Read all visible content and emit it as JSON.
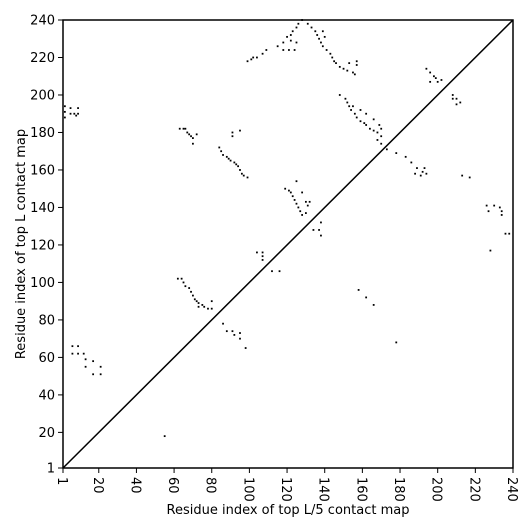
{
  "chart_data": {
    "type": "scatter",
    "xlabel": "Residue index of top L/5 contact map",
    "ylabel": "Residue index of top L contact map",
    "xlim": [
      1,
      240
    ],
    "ylim": [
      1,
      240
    ],
    "xticks": [
      1,
      20,
      40,
      60,
      80,
      100,
      120,
      140,
      160,
      180,
      200,
      220,
      240
    ],
    "yticks": [
      1,
      20,
      40,
      60,
      80,
      100,
      120,
      140,
      160,
      180,
      200,
      220,
      240
    ],
    "xtick_labels": [
      "1",
      "20",
      "40",
      "60",
      "80",
      "100",
      "120",
      "140",
      "160",
      "180",
      "200",
      "220",
      "240"
    ],
    "ytick_labels": [
      "1",
      "20",
      "40",
      "60",
      "80",
      "100",
      "120",
      "140",
      "160",
      "180",
      "200",
      "220",
      "240"
    ],
    "diagonal": true,
    "grid": false,
    "marker_color": "#000000",
    "points": [
      [
        2,
        194
      ],
      [
        2,
        191
      ],
      [
        2,
        188
      ],
      [
        5,
        193
      ],
      [
        5,
        190
      ],
      [
        7,
        190
      ],
      [
        8,
        189
      ],
      [
        9,
        193
      ],
      [
        9,
        190
      ],
      [
        6,
        66
      ],
      [
        6,
        62
      ],
      [
        9,
        66
      ],
      [
        9,
        62
      ],
      [
        12,
        62
      ],
      [
        13,
        59
      ],
      [
        13,
        55
      ],
      [
        17,
        58
      ],
      [
        17,
        51
      ],
      [
        21,
        55
      ],
      [
        21,
        51
      ],
      [
        63,
        182
      ],
      [
        65,
        182
      ],
      [
        66,
        182
      ],
      [
        67,
        180
      ],
      [
        68,
        179
      ],
      [
        69,
        178
      ],
      [
        70,
        177
      ],
      [
        70,
        174
      ],
      [
        72,
        179
      ],
      [
        62,
        102
      ],
      [
        64,
        102
      ],
      [
        65,
        100
      ],
      [
        66,
        98
      ],
      [
        68,
        97
      ],
      [
        69,
        95
      ],
      [
        70,
        93
      ],
      [
        71,
        91
      ],
      [
        72,
        90
      ],
      [
        73,
        89
      ],
      [
        73,
        87
      ],
      [
        75,
        88
      ],
      [
        76,
        87
      ],
      [
        78,
        86
      ],
      [
        80,
        90
      ],
      [
        80,
        86
      ],
      [
        84,
        172
      ],
      [
        85,
        170
      ],
      [
        86,
        168
      ],
      [
        88,
        167
      ],
      [
        89,
        166
      ],
      [
        90,
        165
      ],
      [
        92,
        164
      ],
      [
        93,
        163
      ],
      [
        94,
        162
      ],
      [
        95,
        160
      ],
      [
        96,
        158
      ],
      [
        97,
        157
      ],
      [
        99,
        156
      ],
      [
        91,
        180
      ],
      [
        91,
        178
      ],
      [
        95,
        181
      ],
      [
        86,
        78
      ],
      [
        88,
        74
      ],
      [
        91,
        74
      ],
      [
        92,
        72
      ],
      [
        95,
        73
      ],
      [
        95,
        70
      ],
      [
        98,
        65
      ],
      [
        99,
        218
      ],
      [
        101,
        219
      ],
      [
        102,
        220
      ],
      [
        104,
        220
      ],
      [
        107,
        222
      ],
      [
        109,
        224
      ],
      [
        104,
        116
      ],
      [
        107,
        116
      ],
      [
        107,
        114
      ],
      [
        107,
        112
      ],
      [
        112,
        106
      ],
      [
        116,
        106
      ],
      [
        115,
        226
      ],
      [
        118,
        228
      ],
      [
        120,
        231
      ],
      [
        122,
        232
      ],
      [
        123,
        234
      ],
      [
        125,
        236
      ],
      [
        126,
        238
      ],
      [
        128,
        240
      ],
      [
        131,
        238
      ],
      [
        133,
        236
      ],
      [
        135,
        234
      ],
      [
        136,
        232
      ],
      [
        137,
        230
      ],
      [
        138,
        228
      ],
      [
        139,
        226
      ],
      [
        141,
        224
      ],
      [
        143,
        222
      ],
      [
        144,
        220
      ],
      [
        145,
        218
      ],
      [
        146,
        217
      ],
      [
        148,
        215
      ],
      [
        150,
        214
      ],
      [
        152,
        213
      ],
      [
        155,
        212
      ],
      [
        156,
        211
      ],
      [
        153,
        217
      ],
      [
        157,
        218
      ],
      [
        157,
        216
      ],
      [
        140,
        231
      ],
      [
        139,
        234
      ],
      [
        118,
        224
      ],
      [
        121,
        224
      ],
      [
        124,
        224
      ],
      [
        122,
        229
      ],
      [
        125,
        228
      ],
      [
        119,
        150
      ],
      [
        121,
        149
      ],
      [
        122,
        148
      ],
      [
        123,
        146
      ],
      [
        124,
        144
      ],
      [
        125,
        142
      ],
      [
        126,
        140
      ],
      [
        127,
        138
      ],
      [
        128,
        136
      ],
      [
        125,
        154
      ],
      [
        128,
        148
      ],
      [
        130,
        143
      ],
      [
        131,
        141
      ],
      [
        132,
        143
      ],
      [
        130,
        137
      ],
      [
        134,
        128
      ],
      [
        137,
        128
      ],
      [
        138,
        132
      ],
      [
        138,
        125
      ],
      [
        148,
        200
      ],
      [
        151,
        198
      ],
      [
        152,
        196
      ],
      [
        153,
        194
      ],
      [
        154,
        192
      ],
      [
        156,
        190
      ],
      [
        157,
        188
      ],
      [
        159,
        186
      ],
      [
        161,
        185
      ],
      [
        162,
        184
      ],
      [
        164,
        182
      ],
      [
        166,
        181
      ],
      [
        168,
        180
      ],
      [
        170,
        178
      ],
      [
        155,
        194
      ],
      [
        159,
        192
      ],
      [
        162,
        190
      ],
      [
        166,
        187
      ],
      [
        169,
        184
      ],
      [
        170,
        182
      ],
      [
        168,
        176
      ],
      [
        170,
        174
      ],
      [
        158,
        96
      ],
      [
        162,
        92
      ],
      [
        166,
        88
      ],
      [
        173,
        171
      ],
      [
        178,
        169
      ],
      [
        183,
        167
      ],
      [
        186,
        164
      ],
      [
        189,
        161
      ],
      [
        192,
        159
      ],
      [
        194,
        158
      ],
      [
        188,
        158
      ],
      [
        191,
        157
      ],
      [
        193,
        161
      ],
      [
        178,
        68
      ],
      [
        194,
        214
      ],
      [
        196,
        212
      ],
      [
        198,
        210
      ],
      [
        199,
        209
      ],
      [
        202,
        208
      ],
      [
        196,
        207
      ],
      [
        200,
        207
      ],
      [
        208,
        200
      ],
      [
        210,
        198
      ],
      [
        212,
        196
      ],
      [
        208,
        198
      ],
      [
        210,
        195
      ],
      [
        213,
        157
      ],
      [
        217,
        156
      ],
      [
        226,
        141
      ],
      [
        227,
        138
      ],
      [
        230,
        141
      ],
      [
        233,
        140
      ],
      [
        234,
        138
      ],
      [
        234,
        136
      ],
      [
        236,
        126
      ],
      [
        238,
        126
      ],
      [
        228,
        117
      ],
      [
        55,
        18
      ]
    ]
  }
}
